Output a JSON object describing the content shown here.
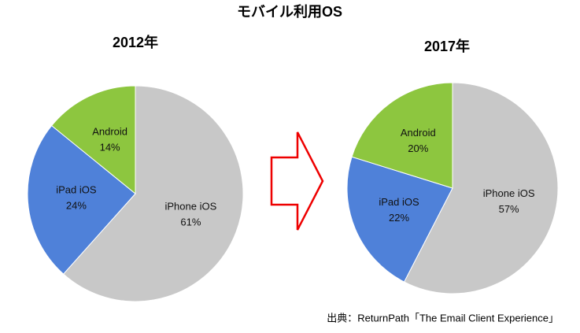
{
  "title": "モバイル利用OS",
  "source": "出典：ReturnPath「The Email Client Experience」",
  "chart_data": [
    {
      "type": "pie",
      "title": "2012年",
      "categories": [
        "iPhone iOS",
        "iPad iOS",
        "Android"
      ],
      "values": [
        61,
        24,
        14
      ],
      "value_labels": [
        "61%",
        "24%",
        "14%"
      ],
      "colors": [
        "#c8c8c8",
        "#4f81d9",
        "#8dc63f"
      ]
    },
    {
      "type": "pie",
      "title": "2017年",
      "categories": [
        "iPhone iOS",
        "iPad iOS",
        "Android"
      ],
      "values": [
        57,
        22,
        20
      ],
      "value_labels": [
        "57%",
        "22%",
        "20%"
      ],
      "colors": [
        "#c8c8c8",
        "#4f81d9",
        "#8dc63f"
      ]
    }
  ]
}
